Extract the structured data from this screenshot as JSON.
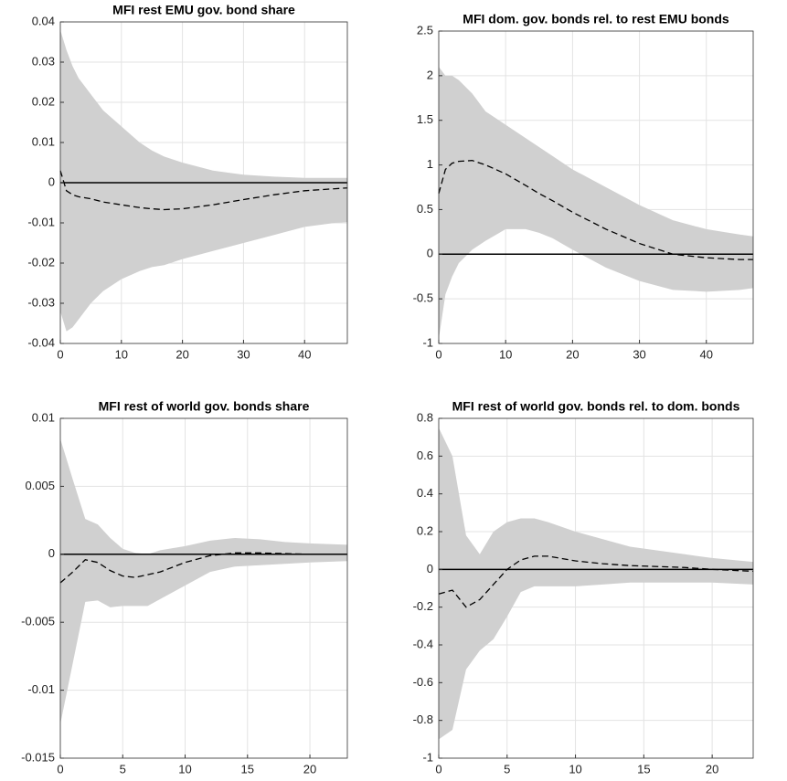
{
  "chart_data": [
    {
      "type": "band-line",
      "title": "MFI rest EMU gov. bond share",
      "x": [
        0,
        1,
        2,
        3,
        5,
        7,
        10,
        13,
        15,
        17,
        20,
        25,
        30,
        35,
        40,
        45,
        47
      ],
      "median": [
        0.003,
        -0.002,
        -0.003,
        -0.0035,
        -0.004,
        -0.0048,
        -0.0055,
        -0.0062,
        -0.0065,
        -0.0067,
        -0.0065,
        -0.0055,
        -0.0042,
        -0.003,
        -0.002,
        -0.0015,
        -0.0013
      ],
      "upper": [
        0.038,
        0.033,
        0.029,
        0.026,
        0.022,
        0.018,
        0.014,
        0.01,
        0.008,
        0.0065,
        0.005,
        0.003,
        0.002,
        0.0015,
        0.0012,
        0.0012,
        0.0012
      ],
      "lower": [
        -0.032,
        -0.037,
        -0.036,
        -0.034,
        -0.03,
        -0.027,
        -0.024,
        -0.022,
        -0.021,
        -0.0205,
        -0.019,
        -0.017,
        -0.015,
        -0.013,
        -0.011,
        -0.01,
        -0.0098
      ],
      "xlim": [
        0,
        47
      ],
      "xticks": [
        0,
        10,
        20,
        30,
        40
      ],
      "ylim": [
        -0.04,
        0.04
      ],
      "yticks": [
        -0.04,
        -0.03,
        -0.02,
        -0.01,
        0,
        0.01,
        0.02,
        0.03,
        0.04
      ],
      "grid": true,
      "band_color": "#d0d0d0",
      "line_color": "#000000"
    },
    {
      "type": "band-line",
      "title": "MFI dom. gov. bonds rel. to rest EMU bonds",
      "x": [
        0,
        1,
        2,
        3,
        5,
        7,
        10,
        13,
        15,
        17,
        20,
        25,
        30,
        35,
        40,
        45,
        47
      ],
      "median": [
        0.68,
        0.95,
        1.02,
        1.04,
        1.05,
        1.0,
        0.9,
        0.77,
        0.68,
        0.6,
        0.47,
        0.28,
        0.12,
        0.0,
        -0.04,
        -0.06,
        -0.06
      ],
      "upper": [
        2.1,
        2.0,
        2.0,
        1.95,
        1.8,
        1.6,
        1.45,
        1.3,
        1.2,
        1.1,
        0.95,
        0.75,
        0.55,
        0.38,
        0.28,
        0.22,
        0.2
      ],
      "lower": [
        -0.95,
        -0.45,
        -0.25,
        -0.1,
        0.05,
        0.15,
        0.28,
        0.28,
        0.24,
        0.18,
        0.05,
        -0.15,
        -0.3,
        -0.4,
        -0.42,
        -0.4,
        -0.38
      ],
      "xlim": [
        0,
        47
      ],
      "xticks": [
        0,
        10,
        20,
        30,
        40
      ],
      "ylim": [
        -1,
        2.5
      ],
      "yticks": [
        -1,
        -0.5,
        0,
        0.5,
        1,
        1.5,
        2,
        2.5
      ],
      "grid": true,
      "band_color": "#d0d0d0",
      "line_color": "#000000"
    },
    {
      "type": "band-line",
      "title": "MFI rest of world gov. bonds share",
      "x": [
        0,
        1,
        2,
        3,
        4,
        5,
        6,
        7,
        8,
        10,
        12,
        14,
        16,
        18,
        20,
        23
      ],
      "median": [
        -0.0021,
        -0.0013,
        -0.0004,
        -0.0006,
        -0.0012,
        -0.0016,
        -0.0017,
        -0.0015,
        -0.0013,
        -0.0006,
        -0.0001,
        0.0001,
        0.0001,
        5e-05,
        0,
        0
      ],
      "upper": [
        0.0085,
        0.0055,
        0.0026,
        0.0022,
        0.0012,
        0.0004,
        0.0001,
        0,
        0.0003,
        0.0006,
        0.001,
        0.0012,
        0.0011,
        0.0009,
        0.0008,
        0.0007
      ],
      "lower": [
        -0.0125,
        -0.008,
        -0.0035,
        -0.0034,
        -0.0039,
        -0.0038,
        -0.0038,
        -0.0038,
        -0.0033,
        -0.0023,
        -0.0013,
        -0.0009,
        -0.0008,
        -0.0007,
        -0.0006,
        -0.0005
      ],
      "xlim": [
        0,
        23
      ],
      "xticks": [
        0,
        5,
        10,
        15,
        20
      ],
      "ylim": [
        -0.015,
        0.01
      ],
      "yticks": [
        -0.015,
        -0.01,
        -0.005,
        0,
        0.005,
        0.01
      ],
      "grid": true,
      "band_color": "#d0d0d0",
      "line_color": "#000000"
    },
    {
      "type": "band-line",
      "title": "MFI rest of world gov. bonds rel. to dom. bonds",
      "x": [
        0,
        1,
        2,
        3,
        4,
        5,
        6,
        7,
        8,
        10,
        12,
        14,
        16,
        18,
        20,
        23
      ],
      "median": [
        -0.13,
        -0.11,
        -0.2,
        -0.16,
        -0.08,
        0.0,
        0.05,
        0.07,
        0.07,
        0.045,
        0.03,
        0.02,
        0.015,
        0.01,
        0.0,
        -0.01
      ],
      "upper": [
        0.75,
        0.6,
        0.18,
        0.08,
        0.2,
        0.25,
        0.27,
        0.27,
        0.25,
        0.2,
        0.16,
        0.12,
        0.1,
        0.08,
        0.06,
        0.04
      ],
      "lower": [
        -0.9,
        -0.85,
        -0.53,
        -0.43,
        -0.37,
        -0.25,
        -0.12,
        -0.09,
        -0.09,
        -0.09,
        -0.08,
        -0.07,
        -0.07,
        -0.07,
        -0.07,
        -0.08
      ],
      "xlim": [
        0,
        23
      ],
      "xticks": [
        0,
        5,
        10,
        15,
        20
      ],
      "ylim": [
        -1,
        0.8
      ],
      "yticks": [
        -1,
        -0.8,
        -0.6,
        -0.4,
        -0.2,
        0,
        0.2,
        0.4,
        0.6,
        0.8
      ],
      "grid": true,
      "band_color": "#d0d0d0",
      "line_color": "#000000"
    }
  ]
}
